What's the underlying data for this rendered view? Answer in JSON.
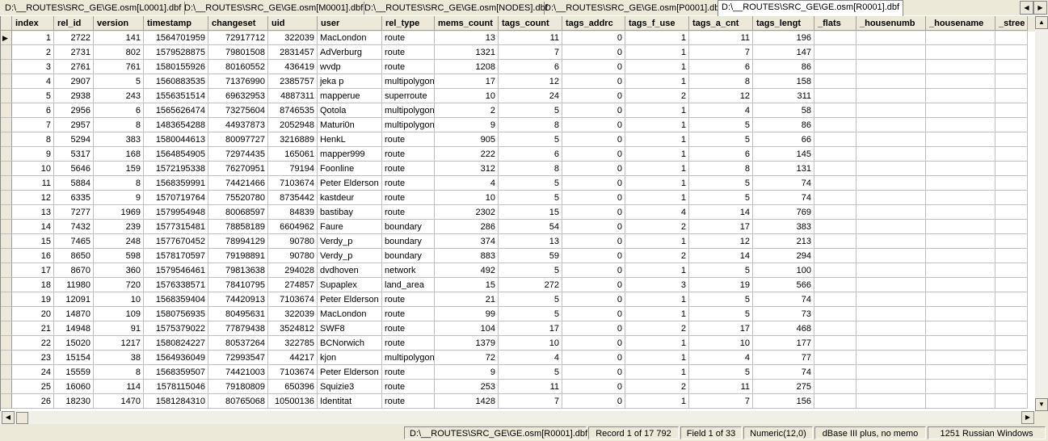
{
  "tabs": [
    "D:\\__ROUTES\\SRC_GE\\GE.osm[L0001].dbf",
    "D:\\__ROUTES\\SRC_GE\\GE.osm[M0001].dbf",
    "D:\\__ROUTES\\SRC_GE\\GE.osm[NODES].dbf",
    "D:\\__ROUTES\\SRC_GE\\GE.osm[P0001].dbf",
    "D:\\__ROUTES\\SRC_GE\\GE.osm[R0001].dbf"
  ],
  "columns": [
    "index",
    "rel_id",
    "version",
    "timestamp",
    "changeset",
    "uid",
    "user",
    "rel_type",
    "mems_count",
    "tags_count",
    "tags_addrc",
    "tags_f_use",
    "tags_a_cnt",
    "tags_lengt",
    "_flats",
    "_housenumb",
    "_housename",
    "_stree"
  ],
  "rows": [
    [
      "1",
      "2722",
      "141",
      "1564701959",
      "72917712",
      "322039",
      "MacLondon",
      "route",
      "13",
      "11",
      "0",
      "1",
      "11",
      "196"
    ],
    [
      "2",
      "2731",
      "802",
      "1579528875",
      "79801508",
      "2831457",
      "AdVerburg",
      "route",
      "1321",
      "7",
      "0",
      "1",
      "7",
      "147"
    ],
    [
      "3",
      "2761",
      "761",
      "1580155926",
      "80160552",
      "436419",
      "wvdp",
      "route",
      "1208",
      "6",
      "0",
      "1",
      "6",
      "86"
    ],
    [
      "4",
      "2907",
      "5",
      "1560883535",
      "71376990",
      "2385757",
      "jeka p",
      "multipolygon",
      "17",
      "12",
      "0",
      "1",
      "8",
      "158"
    ],
    [
      "5",
      "2938",
      "243",
      "1556351514",
      "69632953",
      "4887311",
      "mapperue",
      "superroute",
      "10",
      "24",
      "0",
      "2",
      "12",
      "311"
    ],
    [
      "6",
      "2956",
      "6",
      "1565626474",
      "73275604",
      "8746535",
      "Qotola",
      "multipolygon",
      "2",
      "5",
      "0",
      "1",
      "4",
      "58"
    ],
    [
      "7",
      "2957",
      "8",
      "1483654288",
      "44937873",
      "2052948",
      "Maturi0n",
      "multipolygon",
      "9",
      "8",
      "0",
      "1",
      "5",
      "86"
    ],
    [
      "8",
      "5294",
      "383",
      "1580044613",
      "80097727",
      "3216889",
      "HenkL",
      "route",
      "905",
      "5",
      "0",
      "1",
      "5",
      "66"
    ],
    [
      "9",
      "5317",
      "168",
      "1564854905",
      "72974435",
      "165061",
      "mapper999",
      "route",
      "222",
      "6",
      "0",
      "1",
      "6",
      "145"
    ],
    [
      "10",
      "5646",
      "159",
      "1572195338",
      "76270951",
      "79194",
      "Foonline",
      "route",
      "312",
      "8",
      "0",
      "1",
      "8",
      "131"
    ],
    [
      "11",
      "5884",
      "8",
      "1568359991",
      "74421466",
      "7103674",
      "Peter Elderson",
      "route",
      "4",
      "5",
      "0",
      "1",
      "5",
      "74"
    ],
    [
      "12",
      "6335",
      "9",
      "1570719764",
      "75520780",
      "8735442",
      "kastdeur",
      "route",
      "10",
      "5",
      "0",
      "1",
      "5",
      "74"
    ],
    [
      "13",
      "7277",
      "1969",
      "1579954948",
      "80068597",
      "84839",
      "bastibay",
      "route",
      "2302",
      "15",
      "0",
      "4",
      "14",
      "769"
    ],
    [
      "14",
      "7432",
      "239",
      "1577315481",
      "78858189",
      "6604962",
      "Faure",
      "boundary",
      "286",
      "54",
      "0",
      "2",
      "17",
      "383"
    ],
    [
      "15",
      "7465",
      "248",
      "1577670452",
      "78994129",
      "90780",
      "Verdy_p",
      "boundary",
      "374",
      "13",
      "0",
      "1",
      "12",
      "213"
    ],
    [
      "16",
      "8650",
      "598",
      "1578170597",
      "79198891",
      "90780",
      "Verdy_p",
      "boundary",
      "883",
      "59",
      "0",
      "2",
      "14",
      "294"
    ],
    [
      "17",
      "8670",
      "360",
      "1579546461",
      "79813638",
      "294028",
      "dvdhoven",
      "network",
      "492",
      "5",
      "0",
      "1",
      "5",
      "100"
    ],
    [
      "18",
      "11980",
      "720",
      "1576338571",
      "78410795",
      "274857",
      "Supaplex",
      "land_area",
      "15",
      "272",
      "0",
      "3",
      "19",
      "566"
    ],
    [
      "19",
      "12091",
      "10",
      "1568359404",
      "74420913",
      "7103674",
      "Peter Elderson",
      "route",
      "21",
      "5",
      "0",
      "1",
      "5",
      "74"
    ],
    [
      "20",
      "14870",
      "109",
      "1580756935",
      "80495631",
      "322039",
      "MacLondon",
      "route",
      "99",
      "5",
      "0",
      "1",
      "5",
      "73"
    ],
    [
      "21",
      "14948",
      "91",
      "1575379022",
      "77879438",
      "3524812",
      "SWF8",
      "route",
      "104",
      "17",
      "0",
      "2",
      "17",
      "468"
    ],
    [
      "22",
      "15020",
      "1217",
      "1580824227",
      "80537264",
      "322785",
      "BCNorwich",
      "route",
      "1379",
      "10",
      "0",
      "1",
      "10",
      "177"
    ],
    [
      "23",
      "15154",
      "38",
      "1564936049",
      "72993547",
      "44217",
      "kjon",
      "multipolygon",
      "72",
      "4",
      "0",
      "1",
      "4",
      "77"
    ],
    [
      "24",
      "15559",
      "8",
      "1568359507",
      "74421003",
      "7103674",
      "Peter Elderson",
      "route",
      "9",
      "5",
      "0",
      "1",
      "5",
      "74"
    ],
    [
      "25",
      "16060",
      "114",
      "1578115046",
      "79180809",
      "650396",
      "Squizie3",
      "route",
      "253",
      "11",
      "0",
      "2",
      "11",
      "275"
    ],
    [
      "26",
      "18230",
      "1470",
      "1581284310",
      "80765068",
      "10500136",
      "Identitat",
      "route",
      "1428",
      "7",
      "0",
      "1",
      "7",
      "156"
    ]
  ],
  "status": {
    "file": "D:\\__ROUTES\\SRC_GE\\GE.osm[R0001].dbf",
    "record": "Record 1 of 17 792",
    "field": "Field 1 of 33",
    "type": "Numeric(12,0)",
    "format": "dBase III plus, no memo",
    "codepage": "1251 Russian Windows"
  },
  "icons": {
    "row_pointer": "triangle-right",
    "tab_prev": "arrow-left",
    "tab_next": "arrow-right",
    "scroll_up": "arrow-up",
    "scroll_down": "arrow-down",
    "scroll_left": "arrow-left",
    "scroll_right": "arrow-right"
  }
}
